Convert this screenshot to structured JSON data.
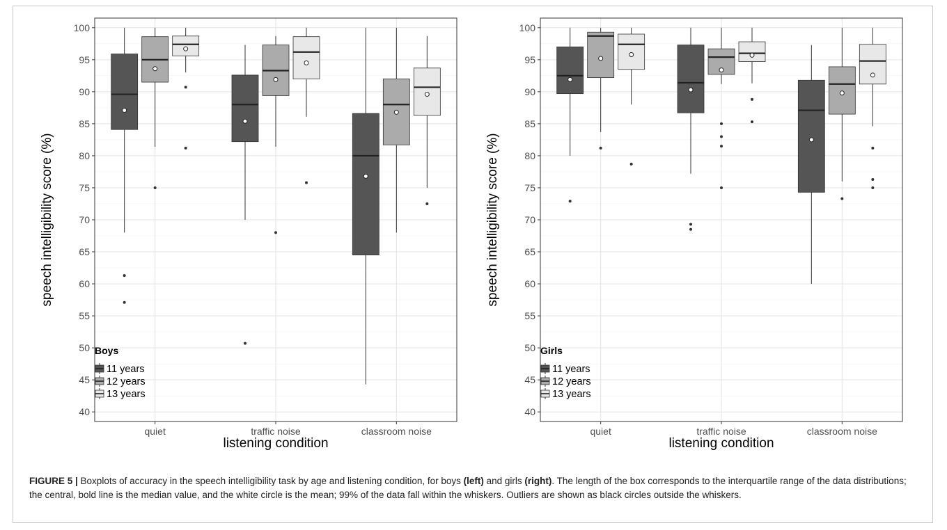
{
  "chart_data": [
    {
      "type": "boxplot",
      "legend_title": "Boys",
      "xlabel": "listening condition",
      "ylabel": "speech intelligibility score (%)",
      "ylim": [
        38.5,
        101.5
      ],
      "yticks": [
        40,
        45,
        50,
        55,
        60,
        65,
        70,
        75,
        80,
        85,
        90,
        95,
        100
      ],
      "legend_position": "bottom-left",
      "grid": true,
      "categories": [
        "quiet",
        "traffic noise",
        "classroom noise"
      ],
      "series": [
        {
          "name": "11 years",
          "color": "#555555",
          "boxes": [
            {
              "whisker_low": 68,
              "q1": 84.1,
              "median": 89.6,
              "q3": 95.9,
              "whisker_high": 100,
              "mean": 87.1,
              "outliers": [
                61.3,
                57.1
              ]
            },
            {
              "whisker_low": 70,
              "q1": 82.2,
              "median": 88.0,
              "q3": 92.6,
              "whisker_high": 97.3,
              "mean": 85.4,
              "outliers": [
                50.7
              ]
            },
            {
              "whisker_low": 44.3,
              "q1": 64.5,
              "median": 80.0,
              "q3": 86.6,
              "whisker_high": 100,
              "mean": 76.8,
              "outliers": []
            }
          ]
        },
        {
          "name": "12 years",
          "color": "#ababab",
          "boxes": [
            {
              "whisker_low": 81.4,
              "q1": 91.5,
              "median": 95.0,
              "q3": 98.6,
              "whisker_high": 100,
              "mean": 93.6,
              "outliers": [
                75.0
              ]
            },
            {
              "whisker_low": 81.4,
              "q1": 89.4,
              "median": 93.3,
              "q3": 97.3,
              "whisker_high": 98.7,
              "mean": 91.9,
              "outliers": [
                68.0
              ]
            },
            {
              "whisker_low": 68.0,
              "q1": 81.7,
              "median": 88.0,
              "q3": 92.0,
              "whisker_high": 100,
              "mean": 86.8,
              "outliers": []
            }
          ]
        },
        {
          "name": "13 years",
          "color": "#e8e8e8",
          "boxes": [
            {
              "whisker_low": 93.0,
              "q1": 95.6,
              "median": 97.4,
              "q3": 98.7,
              "whisker_high": 100,
              "mean": 96.7,
              "outliers": [
                90.7,
                81.2
              ]
            },
            {
              "whisker_low": 86.1,
              "q1": 92.0,
              "median": 96.2,
              "q3": 98.6,
              "whisker_high": 100,
              "mean": 94.5,
              "outliers": [
                75.8
              ]
            },
            {
              "whisker_low": 75.0,
              "q1": 86.3,
              "median": 90.7,
              "q3": 93.7,
              "whisker_high": 98.7,
              "mean": 89.6,
              "outliers": [
                72.5
              ]
            }
          ]
        }
      ]
    },
    {
      "type": "boxplot",
      "legend_title": "Girls",
      "xlabel": "listening condition",
      "ylabel": "speech intelligibility score (%)",
      "ylim": [
        38.5,
        101.5
      ],
      "yticks": [
        40,
        45,
        50,
        55,
        60,
        65,
        70,
        75,
        80,
        85,
        90,
        95,
        100
      ],
      "legend_position": "bottom-left",
      "grid": true,
      "categories": [
        "quiet",
        "traffic noise",
        "classroom noise"
      ],
      "series": [
        {
          "name": "11 years",
          "color": "#555555",
          "boxes": [
            {
              "whisker_low": 80.0,
              "q1": 89.7,
              "median": 92.5,
              "q3": 97.0,
              "whisker_high": 100,
              "mean": 91.9,
              "outliers": [
                72.9
              ]
            },
            {
              "whisker_low": 77.2,
              "q1": 86.7,
              "median": 91.4,
              "q3": 97.3,
              "whisker_high": 100,
              "mean": 90.3,
              "outliers": [
                69.3,
                68.5
              ]
            },
            {
              "whisker_low": 60.0,
              "q1": 74.3,
              "median": 87.1,
              "q3": 91.8,
              "whisker_high": 97.3,
              "mean": 82.5,
              "outliers": []
            }
          ]
        },
        {
          "name": "12 years",
          "color": "#ababab",
          "boxes": [
            {
              "whisker_low": 83.7,
              "q1": 92.2,
              "median": 98.7,
              "q3": 99.3,
              "whisker_high": 100,
              "mean": 95.2,
              "outliers": [
                81.2
              ]
            },
            {
              "whisker_low": 91.2,
              "q1": 92.7,
              "median": 95.4,
              "q3": 96.7,
              "whisker_high": 100,
              "mean": 93.4,
              "outliers": [
                85.0,
                83.0,
                81.5,
                75.0
              ]
            },
            {
              "whisker_low": 76.0,
              "q1": 86.5,
              "median": 91.2,
              "q3": 93.9,
              "whisker_high": 100,
              "mean": 89.8,
              "outliers": [
                73.3
              ]
            }
          ]
        },
        {
          "name": "13 years",
          "color": "#e8e8e8",
          "boxes": [
            {
              "whisker_low": 88.0,
              "q1": 93.5,
              "median": 97.4,
              "q3": 99.0,
              "whisker_high": 100,
              "mean": 95.8,
              "outliers": [
                78.7
              ]
            },
            {
              "whisker_low": 91.3,
              "q1": 94.7,
              "median": 96.0,
              "q3": 97.8,
              "whisker_high": 100,
              "mean": 95.7,
              "outliers": [
                88.8,
                85.3
              ]
            },
            {
              "whisker_low": 84.6,
              "q1": 91.2,
              "median": 94.8,
              "q3": 97.4,
              "whisker_high": 100,
              "mean": 92.6,
              "outliers": [
                81.2,
                76.3,
                75.0
              ]
            }
          ]
        }
      ]
    }
  ],
  "caption": {
    "figure_label": "FIGURE 5 |",
    "text_1": " Boxplots of accuracy in the speech intelligibility task by age and listening condition, for boys ",
    "bold_left": "(left)",
    "text_2": " and girls ",
    "bold_right": "(right)",
    "text_3": ". The length of the box corresponds to the interquartile range of the data distributions; the central, bold line is the median value, and the white circle is the mean; 99% of the data fall within the whiskers. Outliers are shown as black circles outside the whiskers."
  }
}
